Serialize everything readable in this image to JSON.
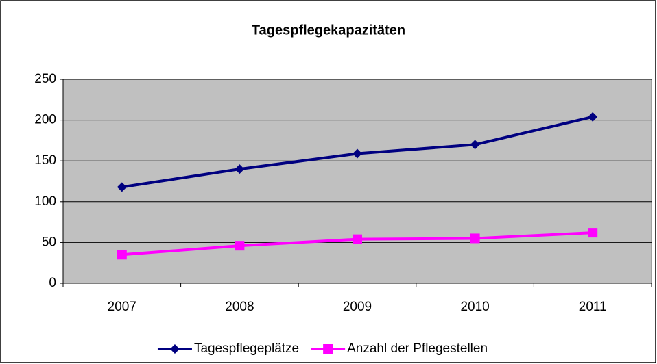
{
  "chart_data": {
    "type": "line",
    "title": "Tagespflegekapazitäten",
    "categories": [
      "2007",
      "2008",
      "2009",
      "2010",
      "2011"
    ],
    "series": [
      {
        "name": "Tagespflegeplätze",
        "color": "#000080",
        "marker": "diamond",
        "values": [
          118,
          140,
          159,
          170,
          204
        ]
      },
      {
        "name": "Anzahl der Pflegestellen",
        "color": "#ff00ff",
        "marker": "square",
        "values": [
          35,
          46,
          54,
          55,
          62
        ]
      }
    ],
    "ylim": [
      0,
      250
    ],
    "yticks": [
      0,
      50,
      100,
      150,
      200,
      250
    ],
    "grid": true,
    "legend": "bottom"
  }
}
